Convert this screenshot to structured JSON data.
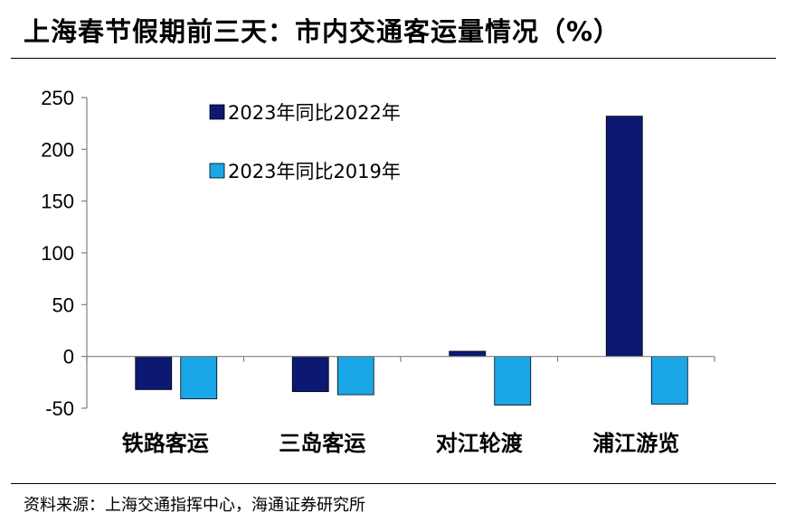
{
  "title": "上海春节假期前三天：市内交通客运量情况（%）",
  "source": "资料来源：上海交通指挥中心，海通证券研究所",
  "colors": {
    "series_2022": "#0b1972",
    "series_2019": "#1aa7e8",
    "axis": "#808080",
    "text": "#000000"
  },
  "chart_data": {
    "type": "bar",
    "title": "上海春节假期前三天：市内交通客运量情况（%）",
    "categories": [
      "铁路客运",
      "三岛客运",
      "对江轮渡",
      "浦江游览"
    ],
    "series": [
      {
        "name": "2023年同比2022年",
        "values": [
          -32,
          -34,
          5,
          232
        ]
      },
      {
        "name": "2023年同比2019年",
        "values": [
          -41,
          -37,
          -47,
          -46
        ]
      }
    ],
    "yticks": [
      -50,
      0,
      50,
      100,
      150,
      200,
      250
    ],
    "ylim": [
      -50,
      250
    ],
    "xlabel": "",
    "ylabel": "",
    "grid": false,
    "legend": "top-left inside plot"
  }
}
